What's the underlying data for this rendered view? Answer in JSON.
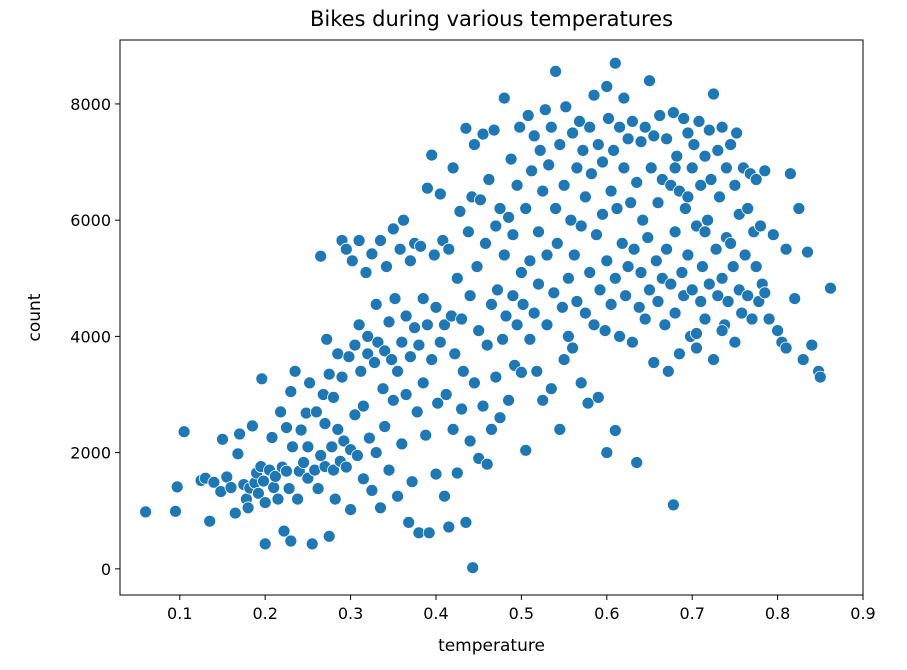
{
  "colors": {
    "point": "#1f77b4",
    "point_edge": "#ffffff",
    "axis": "#000000",
    "background": "#ffffff"
  },
  "chart_data": {
    "type": "scatter",
    "title": "Bikes during various temperatures",
    "xlabel": "temperature",
    "ylabel": "count",
    "xlim": [
      0.03,
      0.9
    ],
    "ylim": [
      -450,
      9100
    ],
    "xticks": [
      0.1,
      0.2,
      0.3,
      0.4,
      0.5,
      0.6,
      0.7,
      0.8,
      0.9
    ],
    "xtick_labels": [
      "0.1",
      "0.2",
      "0.3",
      "0.4",
      "0.5",
      "0.6",
      "0.7",
      "0.8",
      "0.9"
    ],
    "yticks": [
      0,
      2000,
      4000,
      6000,
      8000
    ],
    "ytick_labels": [
      "0",
      "2000",
      "4000",
      "6000",
      "8000"
    ],
    "grid": false,
    "legend": "none",
    "points": [
      [
        0.06,
        980
      ],
      [
        0.095,
        990
      ],
      [
        0.097,
        1410
      ],
      [
        0.105,
        2360
      ],
      [
        0.125,
        1520
      ],
      [
        0.13,
        1560
      ],
      [
        0.135,
        820
      ],
      [
        0.14,
        1490
      ],
      [
        0.148,
        1330
      ],
      [
        0.15,
        2230
      ],
      [
        0.155,
        1580
      ],
      [
        0.16,
        1400
      ],
      [
        0.165,
        960
      ],
      [
        0.168,
        1980
      ],
      [
        0.17,
        2320
      ],
      [
        0.175,
        1450
      ],
      [
        0.178,
        1200
      ],
      [
        0.18,
        1050
      ],
      [
        0.182,
        1390
      ],
      [
        0.185,
        2460
      ],
      [
        0.188,
        1480
      ],
      [
        0.19,
        1650
      ],
      [
        0.192,
        1300
      ],
      [
        0.195,
        1760
      ],
      [
        0.196,
        3270
      ],
      [
        0.198,
        1510
      ],
      [
        0.2,
        1140
      ],
      [
        0.2,
        430
      ],
      [
        0.205,
        1700
      ],
      [
        0.208,
        2260
      ],
      [
        0.21,
        1400
      ],
      [
        0.212,
        1590
      ],
      [
        0.215,
        1200
      ],
      [
        0.218,
        2700
      ],
      [
        0.22,
        1750
      ],
      [
        0.222,
        650
      ],
      [
        0.225,
        1680
      ],
      [
        0.225,
        2430
      ],
      [
        0.228,
        1380
      ],
      [
        0.23,
        3050
      ],
      [
        0.23,
        480
      ],
      [
        0.232,
        2100
      ],
      [
        0.235,
        3400
      ],
      [
        0.238,
        1200
      ],
      [
        0.24,
        1680
      ],
      [
        0.242,
        2390
      ],
      [
        0.245,
        1830
      ],
      [
        0.248,
        2680
      ],
      [
        0.25,
        2100
      ],
      [
        0.25,
        1560
      ],
      [
        0.252,
        3200
      ],
      [
        0.255,
        430
      ],
      [
        0.258,
        1700
      ],
      [
        0.26,
        2700
      ],
      [
        0.262,
        1380
      ],
      [
        0.265,
        1950
      ],
      [
        0.265,
        5380
      ],
      [
        0.268,
        3000
      ],
      [
        0.27,
        1760
      ],
      [
        0.27,
        2500
      ],
      [
        0.272,
        3950
      ],
      [
        0.275,
        560
      ],
      [
        0.275,
        3350
      ],
      [
        0.278,
        2100
      ],
      [
        0.28,
        1700
      ],
      [
        0.28,
        2950
      ],
      [
        0.282,
        1200
      ],
      [
        0.285,
        3700
      ],
      [
        0.285,
        2400
      ],
      [
        0.288,
        1850
      ],
      [
        0.29,
        5650
      ],
      [
        0.29,
        3300
      ],
      [
        0.292,
        2200
      ],
      [
        0.295,
        1750
      ],
      [
        0.295,
        5500
      ],
      [
        0.298,
        3650
      ],
      [
        0.3,
        2050
      ],
      [
        0.3,
        1020
      ],
      [
        0.302,
        5300
      ],
      [
        0.305,
        3850
      ],
      [
        0.305,
        2650
      ],
      [
        0.308,
        1950
      ],
      [
        0.31,
        5650
      ],
      [
        0.31,
        4200
      ],
      [
        0.312,
        3400
      ],
      [
        0.315,
        1550
      ],
      [
        0.315,
        2800
      ],
      [
        0.318,
        5100
      ],
      [
        0.32,
        3700
      ],
      [
        0.32,
        4000
      ],
      [
        0.322,
        2250
      ],
      [
        0.325,
        1350
      ],
      [
        0.325,
        5420
      ],
      [
        0.328,
        3550
      ],
      [
        0.33,
        2000
      ],
      [
        0.33,
        4550
      ],
      [
        0.332,
        3900
      ],
      [
        0.335,
        5650
      ],
      [
        0.335,
        1050
      ],
      [
        0.338,
        3100
      ],
      [
        0.34,
        3750
      ],
      [
        0.34,
        2450
      ],
      [
        0.342,
        5200
      ],
      [
        0.345,
        4250
      ],
      [
        0.345,
        1700
      ],
      [
        0.348,
        3600
      ],
      [
        0.35,
        2900
      ],
      [
        0.35,
        5850
      ],
      [
        0.352,
        4650
      ],
      [
        0.355,
        3400
      ],
      [
        0.355,
        1250
      ],
      [
        0.358,
        5500
      ],
      [
        0.36,
        3900
      ],
      [
        0.36,
        2150
      ],
      [
        0.362,
        6000
      ],
      [
        0.365,
        4350
      ],
      [
        0.365,
        3000
      ],
      [
        0.368,
        800
      ],
      [
        0.37,
        5300
      ],
      [
        0.37,
        3650
      ],
      [
        0.372,
        1500
      ],
      [
        0.375,
        4150
      ],
      [
        0.375,
        5600
      ],
      [
        0.378,
        2700
      ],
      [
        0.38,
        3850
      ],
      [
        0.38,
        620
      ],
      [
        0.382,
        5550
      ],
      [
        0.385,
        4650
      ],
      [
        0.385,
        3200
      ],
      [
        0.388,
        2300
      ],
      [
        0.39,
        6550
      ],
      [
        0.39,
        4200
      ],
      [
        0.392,
        620
      ],
      [
        0.395,
        3600
      ],
      [
        0.395,
        7120
      ],
      [
        0.398,
        5400
      ],
      [
        0.4,
        4500
      ],
      [
        0.4,
        1630
      ],
      [
        0.402,
        2850
      ],
      [
        0.405,
        6450
      ],
      [
        0.405,
        3900
      ],
      [
        0.408,
        5650
      ],
      [
        0.41,
        1250
      ],
      [
        0.41,
        4200
      ],
      [
        0.412,
        3000
      ],
      [
        0.415,
        5500
      ],
      [
        0.415,
        720
      ],
      [
        0.418,
        4350
      ],
      [
        0.42,
        2400
      ],
      [
        0.42,
        6900
      ],
      [
        0.422,
        3700
      ],
      [
        0.425,
        5000
      ],
      [
        0.425,
        1650
      ],
      [
        0.428,
        6150
      ],
      [
        0.43,
        2750
      ],
      [
        0.43,
        4300
      ],
      [
        0.432,
        3400
      ],
      [
        0.435,
        7580
      ],
      [
        0.435,
        800
      ],
      [
        0.438,
        5800
      ],
      [
        0.44,
        4700
      ],
      [
        0.44,
        2200
      ],
      [
        0.442,
        6400
      ],
      [
        0.443,
        20
      ],
      [
        0.445,
        3200
      ],
      [
        0.445,
        7300
      ],
      [
        0.448,
        5200
      ],
      [
        0.45,
        1900
      ],
      [
        0.45,
        4100
      ],
      [
        0.452,
        6350
      ],
      [
        0.455,
        2800
      ],
      [
        0.455,
        7480
      ],
      [
        0.458,
        5600
      ],
      [
        0.46,
        3850
      ],
      [
        0.46,
        1800
      ],
      [
        0.462,
        6700
      ],
      [
        0.465,
        4550
      ],
      [
        0.465,
        2400
      ],
      [
        0.468,
        7550
      ],
      [
        0.47,
        5900
      ],
      [
        0.47,
        3300
      ],
      [
        0.472,
        4800
      ],
      [
        0.475,
        6200
      ],
      [
        0.475,
        2600
      ],
      [
        0.478,
        3950
      ],
      [
        0.48,
        5400
      ],
      [
        0.48,
        8100
      ],
      [
        0.482,
        4350
      ],
      [
        0.485,
        6050
      ],
      [
        0.485,
        2900
      ],
      [
        0.488,
        7050
      ],
      [
        0.49,
        4700
      ],
      [
        0.49,
        5750
      ],
      [
        0.492,
        3500
      ],
      [
        0.495,
        6600
      ],
      [
        0.495,
        4200
      ],
      [
        0.498,
        7600
      ],
      [
        0.5,
        5100
      ],
      [
        0.5,
        3380
      ],
      [
        0.502,
        4550
      ],
      [
        0.505,
        6200
      ],
      [
        0.505,
        2040
      ],
      [
        0.508,
        7800
      ],
      [
        0.51,
        5300
      ],
      [
        0.51,
        3950
      ],
      [
        0.512,
        6850
      ],
      [
        0.515,
        4400
      ],
      [
        0.515,
        7450
      ],
      [
        0.518,
        3400
      ],
      [
        0.52,
        5800
      ],
      [
        0.52,
        4900
      ],
      [
        0.522,
        7200
      ],
      [
        0.525,
        2900
      ],
      [
        0.525,
        6500
      ],
      [
        0.528,
        7900
      ],
      [
        0.53,
        4200
      ],
      [
        0.53,
        5400
      ],
      [
        0.532,
        6950
      ],
      [
        0.535,
        3100
      ],
      [
        0.535,
        7600
      ],
      [
        0.538,
        4750
      ],
      [
        0.54,
        6200
      ],
      [
        0.54,
        8560
      ],
      [
        0.542,
        5600
      ],
      [
        0.545,
        2400
      ],
      [
        0.545,
        7300
      ],
      [
        0.548,
        4500
      ],
      [
        0.55,
        6600
      ],
      [
        0.55,
        3600
      ],
      [
        0.552,
        7950
      ],
      [
        0.555,
        5000
      ],
      [
        0.555,
        4000
      ],
      [
        0.558,
        6000
      ],
      [
        0.56,
        7500
      ],
      [
        0.56,
        3800
      ],
      [
        0.562,
        5400
      ],
      [
        0.565,
        6900
      ],
      [
        0.565,
        4600
      ],
      [
        0.568,
        7700
      ],
      [
        0.57,
        3200
      ],
      [
        0.57,
        5900
      ],
      [
        0.572,
        7200
      ],
      [
        0.575,
        4400
      ],
      [
        0.575,
        6400
      ],
      [
        0.578,
        2850
      ],
      [
        0.58,
        7600
      ],
      [
        0.58,
        5100
      ],
      [
        0.582,
        6800
      ],
      [
        0.585,
        4200
      ],
      [
        0.585,
        8150
      ],
      [
        0.588,
        5750
      ],
      [
        0.59,
        7300
      ],
      [
        0.59,
        2950
      ],
      [
        0.592,
        4800
      ],
      [
        0.595,
        7000
      ],
      [
        0.595,
        6100
      ],
      [
        0.598,
        4100
      ],
      [
        0.6,
        8300
      ],
      [
        0.6,
        5300
      ],
      [
        0.6,
        2000
      ],
      [
        0.602,
        7750
      ],
      [
        0.605,
        6500
      ],
      [
        0.605,
        4550
      ],
      [
        0.608,
        7200
      ],
      [
        0.61,
        8700
      ],
      [
        0.61,
        5000
      ],
      [
        0.61,
        2380
      ],
      [
        0.612,
        6200
      ],
      [
        0.615,
        7600
      ],
      [
        0.615,
        4000
      ],
      [
        0.618,
        5600
      ],
      [
        0.62,
        6900
      ],
      [
        0.62,
        8100
      ],
      [
        0.622,
        4700
      ],
      [
        0.625,
        7400
      ],
      [
        0.625,
        5200
      ],
      [
        0.628,
        6300
      ],
      [
        0.63,
        3900
      ],
      [
        0.63,
        7700
      ],
      [
        0.632,
        5500
      ],
      [
        0.635,
        1830
      ],
      [
        0.635,
        6650
      ],
      [
        0.638,
        4500
      ],
      [
        0.64,
        7350
      ],
      [
        0.64,
        5100
      ],
      [
        0.642,
        6000
      ],
      [
        0.645,
        7600
      ],
      [
        0.645,
        4300
      ],
      [
        0.648,
        5700
      ],
      [
        0.65,
        8400
      ],
      [
        0.65,
        4800
      ],
      [
        0.652,
        6900
      ],
      [
        0.655,
        3550
      ],
      [
        0.655,
        7450
      ],
      [
        0.658,
        5300
      ],
      [
        0.66,
        6300
      ],
      [
        0.66,
        4600
      ],
      [
        0.662,
        7800
      ],
      [
        0.665,
        5000
      ],
      [
        0.665,
        6700
      ],
      [
        0.668,
        4200
      ],
      [
        0.67,
        7400
      ],
      [
        0.67,
        5500
      ],
      [
        0.672,
        3400
      ],
      [
        0.675,
        6600
      ],
      [
        0.675,
        4900
      ],
      [
        0.678,
        1100
      ],
      [
        0.678,
        7850
      ],
      [
        0.68,
        5800
      ],
      [
        0.68,
        4400
      ],
      [
        0.682,
        7100
      ],
      [
        0.685,
        3700
      ],
      [
        0.685,
        6500
      ],
      [
        0.688,
        5100
      ],
      [
        0.69,
        7750
      ],
      [
        0.69,
        4700
      ],
      [
        0.692,
        6200
      ],
      [
        0.695,
        5400
      ],
      [
        0.695,
        7500
      ],
      [
        0.698,
        4000
      ],
      [
        0.7,
        6900
      ],
      [
        0.7,
        4800
      ],
      [
        0.702,
        7300
      ],
      [
        0.705,
        5900
      ],
      [
        0.705,
        3800
      ],
      [
        0.708,
        7700
      ],
      [
        0.71,
        4600
      ],
      [
        0.71,
        6600
      ],
      [
        0.712,
        5200
      ],
      [
        0.715,
        7100
      ],
      [
        0.715,
        4300
      ],
      [
        0.718,
        6000
      ],
      [
        0.72,
        7550
      ],
      [
        0.72,
        4900
      ],
      [
        0.722,
        6700
      ],
      [
        0.725,
        8170
      ],
      [
        0.725,
        3600
      ],
      [
        0.728,
        5500
      ],
      [
        0.73,
        7200
      ],
      [
        0.73,
        4700
      ],
      [
        0.732,
        6400
      ],
      [
        0.735,
        5000
      ],
      [
        0.735,
        7600
      ],
      [
        0.738,
        4200
      ],
      [
        0.74,
        6900
      ],
      [
        0.74,
        5700
      ],
      [
        0.742,
        4600
      ],
      [
        0.745,
        7300
      ],
      [
        0.748,
        5200
      ],
      [
        0.75,
        6600
      ],
      [
        0.75,
        3900
      ],
      [
        0.752,
        7500
      ],
      [
        0.755,
        4800
      ],
      [
        0.755,
        6100
      ],
      [
        0.758,
        4400
      ],
      [
        0.76,
        6900
      ],
      [
        0.762,
        5400
      ],
      [
        0.765,
        6200
      ],
      [
        0.765,
        4700
      ],
      [
        0.768,
        6800
      ],
      [
        0.77,
        4300
      ],
      [
        0.772,
        5800
      ],
      [
        0.775,
        6700
      ],
      [
        0.778,
        4600
      ],
      [
        0.78,
        5900
      ],
      [
        0.782,
        4900
      ],
      [
        0.785,
        6850
      ],
      [
        0.79,
        4300
      ],
      [
        0.795,
        5750
      ],
      [
        0.8,
        4100
      ],
      [
        0.805,
        3900
      ],
      [
        0.81,
        5500
      ],
      [
        0.815,
        6800
      ],
      [
        0.82,
        4650
      ],
      [
        0.825,
        6200
      ],
      [
        0.83,
        3600
      ],
      [
        0.835,
        5450
      ],
      [
        0.84,
        3850
      ],
      [
        0.848,
        3400
      ],
      [
        0.85,
        3300
      ],
      [
        0.862,
        4830
      ],
      [
        0.81,
        3800
      ],
      [
        0.785,
        4750
      ],
      [
        0.775,
        5200
      ],
      [
        0.745,
        5600
      ],
      [
        0.735,
        4100
      ],
      [
        0.715,
        5800
      ],
      [
        0.695,
        6400
      ],
      [
        0.705,
        4050
      ],
      [
        0.68,
        6900
      ]
    ]
  }
}
